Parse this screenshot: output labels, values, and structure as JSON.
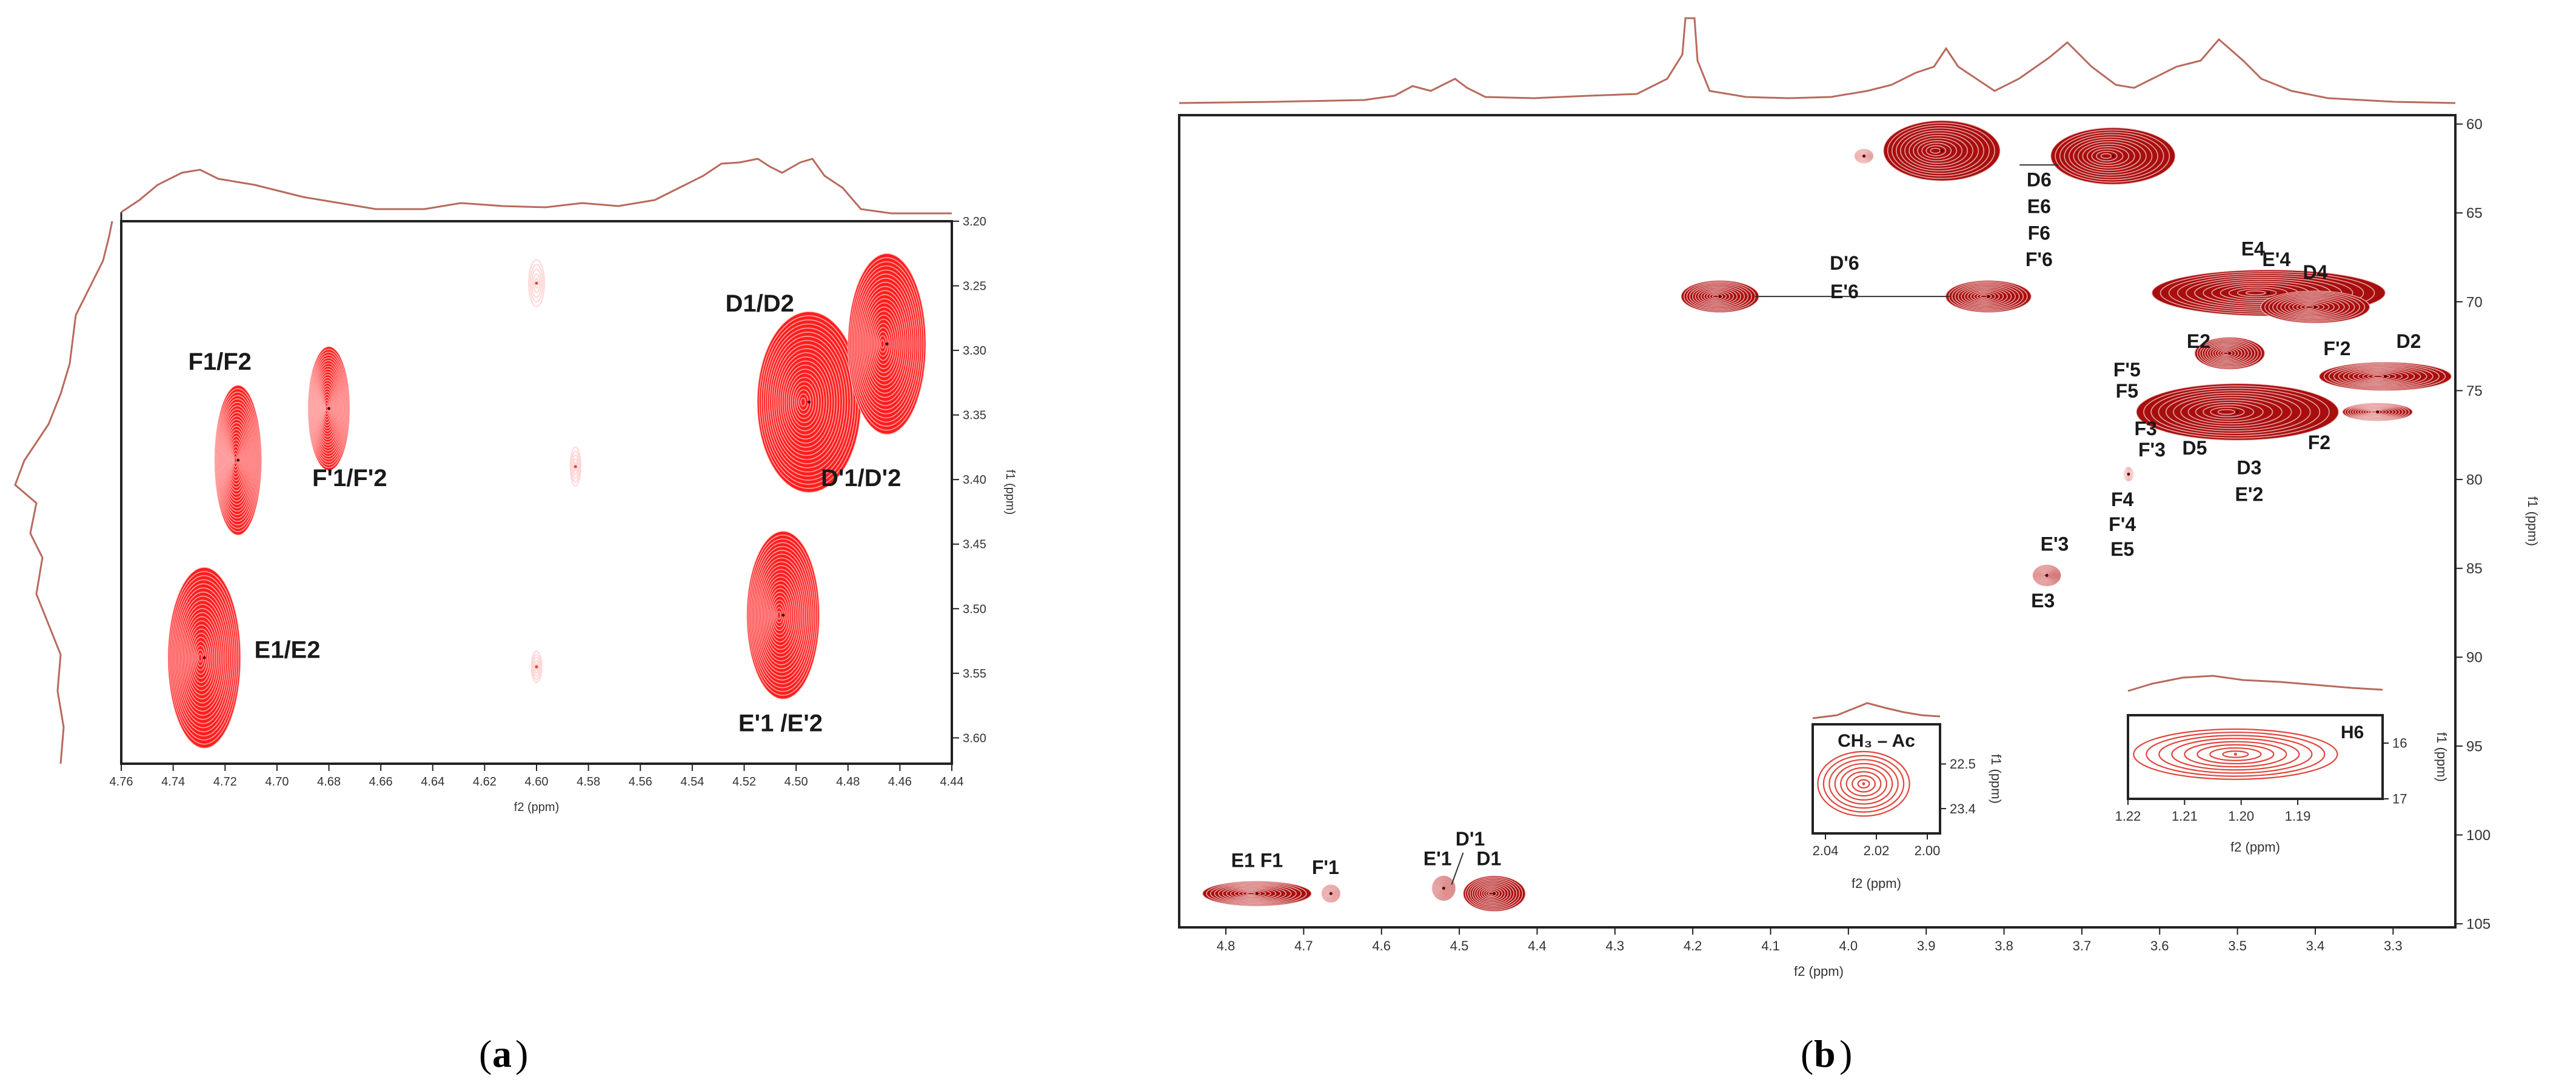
{
  "panels": [
    {
      "id": "a",
      "panel_label": "a",
      "chart_data": {
        "type": "heatmap",
        "subtype": "2D NMR contour",
        "xlabel": "f2 (ppm)",
        "ylabel": "f1 (ppm)",
        "xlim": [
          4.76,
          4.44
        ],
        "ylim": [
          3.2,
          3.62
        ],
        "x_ticks": [
          "4.76",
          "4.74",
          "4.72",
          "4.70",
          "4.68",
          "4.66",
          "4.64",
          "4.62",
          "4.60",
          "4.58",
          "4.56",
          "4.54",
          "4.52",
          "4.50",
          "4.48",
          "4.46",
          "4.44"
        ],
        "y_ticks": [
          "3.20",
          "3.25",
          "3.30",
          "3.35",
          "3.40",
          "3.45",
          "3.50",
          "3.55",
          "3.60"
        ],
        "peaks": [
          {
            "x": 4.715,
            "y": 3.385,
            "rx": 0.009,
            "ry": 0.058,
            "filled": true
          },
          {
            "x": 4.68,
            "y": 3.345,
            "rx": 0.008,
            "ry": 0.048,
            "filled": true
          },
          {
            "x": 4.728,
            "y": 3.538,
            "rx": 0.014,
            "ry": 0.07,
            "filled": true
          },
          {
            "x": 4.505,
            "y": 3.505,
            "rx": 0.014,
            "ry": 0.065,
            "filled": true
          },
          {
            "x": 4.495,
            "y": 3.34,
            "rx": 0.02,
            "ry": 0.07,
            "filled": true
          },
          {
            "x": 4.465,
            "y": 3.295,
            "rx": 0.015,
            "ry": 0.07,
            "filled": true
          },
          {
            "x": 4.6,
            "y": 3.248,
            "rx": 0.003,
            "ry": 0.018,
            "filled": false
          },
          {
            "x": 4.585,
            "y": 3.39,
            "rx": 0.002,
            "ry": 0.015,
            "filled": false
          },
          {
            "x": 4.6,
            "y": 3.545,
            "rx": 0.002,
            "ry": 0.012,
            "filled": false
          }
        ],
        "annotations": [
          {
            "text": "F1/F2",
            "x": 4.722,
            "y": 3.315
          },
          {
            "text": "F'1/F'2",
            "x": 4.672,
            "y": 3.405
          },
          {
            "text": "E1/E2",
            "x": 4.696,
            "y": 3.538
          },
          {
            "text": "D1/D2",
            "x": 4.514,
            "y": 3.27
          },
          {
            "text": "D'1/D'2",
            "x": 4.475,
            "y": 3.405
          },
          {
            "text": "E'1 /E'2",
            "x": 4.506,
            "y": 3.595
          }
        ]
      }
    },
    {
      "id": "b",
      "panel_label": "b",
      "chart_data": {
        "type": "heatmap",
        "subtype": "2D NMR contour",
        "xlabel": "f2 (ppm)",
        "ylabel": "f1 (ppm)",
        "xlim": [
          4.86,
          3.22
        ],
        "ylim": [
          59.5,
          105.2
        ],
        "x_ticks": [
          "4.8",
          "4.7",
          "4.6",
          "4.5",
          "4.4",
          "4.3",
          "4.2",
          "4.1",
          "4.0",
          "3.9",
          "3.8",
          "3.7",
          "3.6",
          "3.5",
          "3.4",
          "3.3"
        ],
        "y_ticks": [
          "60",
          "65",
          "70",
          "75",
          "80",
          "85",
          "90",
          "95",
          "100",
          "105"
        ],
        "peaks": [
          {
            "x": 3.98,
            "y": 61.8,
            "rx": 0.012,
            "ry": 0.4
          },
          {
            "x": 3.88,
            "y": 61.5,
            "rx": 0.075,
            "ry": 1.7
          },
          {
            "x": 3.66,
            "y": 61.8,
            "rx": 0.08,
            "ry": 1.6
          },
          {
            "x": 4.165,
            "y": 69.7,
            "rx": 0.05,
            "ry": 0.9
          },
          {
            "x": 3.82,
            "y": 69.7,
            "rx": 0.055,
            "ry": 0.9
          },
          {
            "x": 3.46,
            "y": 69.5,
            "rx": 0.15,
            "ry": 1.3
          },
          {
            "x": 3.4,
            "y": 70.3,
            "rx": 0.07,
            "ry": 0.9
          },
          {
            "x": 3.51,
            "y": 72.9,
            "rx": 0.045,
            "ry": 0.9
          },
          {
            "x": 3.31,
            "y": 74.2,
            "rx": 0.085,
            "ry": 0.8
          },
          {
            "x": 3.5,
            "y": 76.2,
            "rx": 0.13,
            "ry": 1.6
          },
          {
            "x": 3.32,
            "y": 76.2,
            "rx": 0.045,
            "ry": 0.5
          },
          {
            "x": 3.64,
            "y": 79.7,
            "rx": 0.006,
            "ry": 0.4
          },
          {
            "x": 3.745,
            "y": 85.4,
            "rx": 0.018,
            "ry": 0.6
          },
          {
            "x": 4.76,
            "y": 103.3,
            "rx": 0.07,
            "ry": 0.7
          },
          {
            "x": 4.665,
            "y": 103.3,
            "rx": 0.012,
            "ry": 0.5
          },
          {
            "x": 4.52,
            "y": 103.0,
            "rx": 0.015,
            "ry": 0.7
          },
          {
            "x": 4.455,
            "y": 103.3,
            "rx": 0.04,
            "ry": 1.0
          }
        ],
        "annotations": [
          {
            "text": "D6",
            "x": 3.755,
            "y": 63.5
          },
          {
            "text": "E6",
            "x": 3.755,
            "y": 65.0
          },
          {
            "text": "F6",
            "x": 3.755,
            "y": 66.5
          },
          {
            "text": "F'6",
            "x": 3.755,
            "y": 68.0
          },
          {
            "text": "D'6",
            "x": 4.005,
            "y": 68.2
          },
          {
            "text": "E'6",
            "x": 4.005,
            "y": 69.8
          },
          {
            "text": "E4",
            "x": 3.48,
            "y": 67.4
          },
          {
            "text": "E'4",
            "x": 3.45,
            "y": 68.0
          },
          {
            "text": "D4",
            "x": 3.4,
            "y": 68.7
          },
          {
            "text": "E2",
            "x": 3.55,
            "y": 72.6
          },
          {
            "text": "F'2",
            "x": 3.372,
            "y": 73.0
          },
          {
            "text": "D2",
            "x": 3.28,
            "y": 72.6
          },
          {
            "text": "F'5",
            "x": 3.642,
            "y": 74.2
          },
          {
            "text": "F5",
            "x": 3.642,
            "y": 75.4
          },
          {
            "text": "F3",
            "x": 3.618,
            "y": 77.5
          },
          {
            "text": "F'3",
            "x": 3.61,
            "y": 78.7
          },
          {
            "text": "D5",
            "x": 3.555,
            "y": 78.6
          },
          {
            "text": "D3",
            "x": 3.485,
            "y": 79.7
          },
          {
            "text": "E'2",
            "x": 3.485,
            "y": 81.2
          },
          {
            "text": "F2",
            "x": 3.395,
            "y": 78.3
          },
          {
            "text": "F4",
            "x": 3.648,
            "y": 81.5
          },
          {
            "text": "F'4",
            "x": 3.648,
            "y": 82.9
          },
          {
            "text": "E5",
            "x": 3.648,
            "y": 84.3
          },
          {
            "text": "E'3",
            "x": 3.735,
            "y": 84.0
          },
          {
            "text": "E3",
            "x": 3.75,
            "y": 87.2
          },
          {
            "text": "E1 F1",
            "x": 4.76,
            "y": 101.8
          },
          {
            "text": "F'1",
            "x": 4.672,
            "y": 102.2
          },
          {
            "text": "E'1",
            "x": 4.528,
            "y": 101.7
          },
          {
            "text": "D'1",
            "x": 4.486,
            "y": 100.6
          },
          {
            "text": "D1",
            "x": 4.462,
            "y": 101.7
          }
        ]
      },
      "insets": [
        {
          "id": "ch3-ac",
          "title": "CH₃ – Ac",
          "xlabel": "f2 (ppm)",
          "ylabel": "f1 (ppm)",
          "xlim": [
            2.045,
            1.995
          ],
          "ylim": [
            21.7,
            23.9
          ],
          "x_ticks": [
            "2.04",
            "2.02",
            "2.00"
          ],
          "y_ticks": [
            "22.5",
            "23.4"
          ],
          "peak": {
            "x": 2.025,
            "y": 22.9,
            "rx": 0.018,
            "ry": 0.65
          }
        },
        {
          "id": "h6",
          "title": "H6",
          "xlabel": "f2 (ppm)",
          "ylabel": "f1 (ppm)",
          "xlim": [
            1.22,
            1.175
          ],
          "ylim": [
            15.5,
            17.0
          ],
          "x_ticks": [
            "1.22",
            "1.21",
            "1.20",
            "1.19"
          ],
          "y_ticks": [
            "16",
            "17"
          ],
          "peak": {
            "x": 1.201,
            "y": 16.2,
            "rx": 0.018,
            "ry": 0.45
          }
        }
      ]
    }
  ]
}
